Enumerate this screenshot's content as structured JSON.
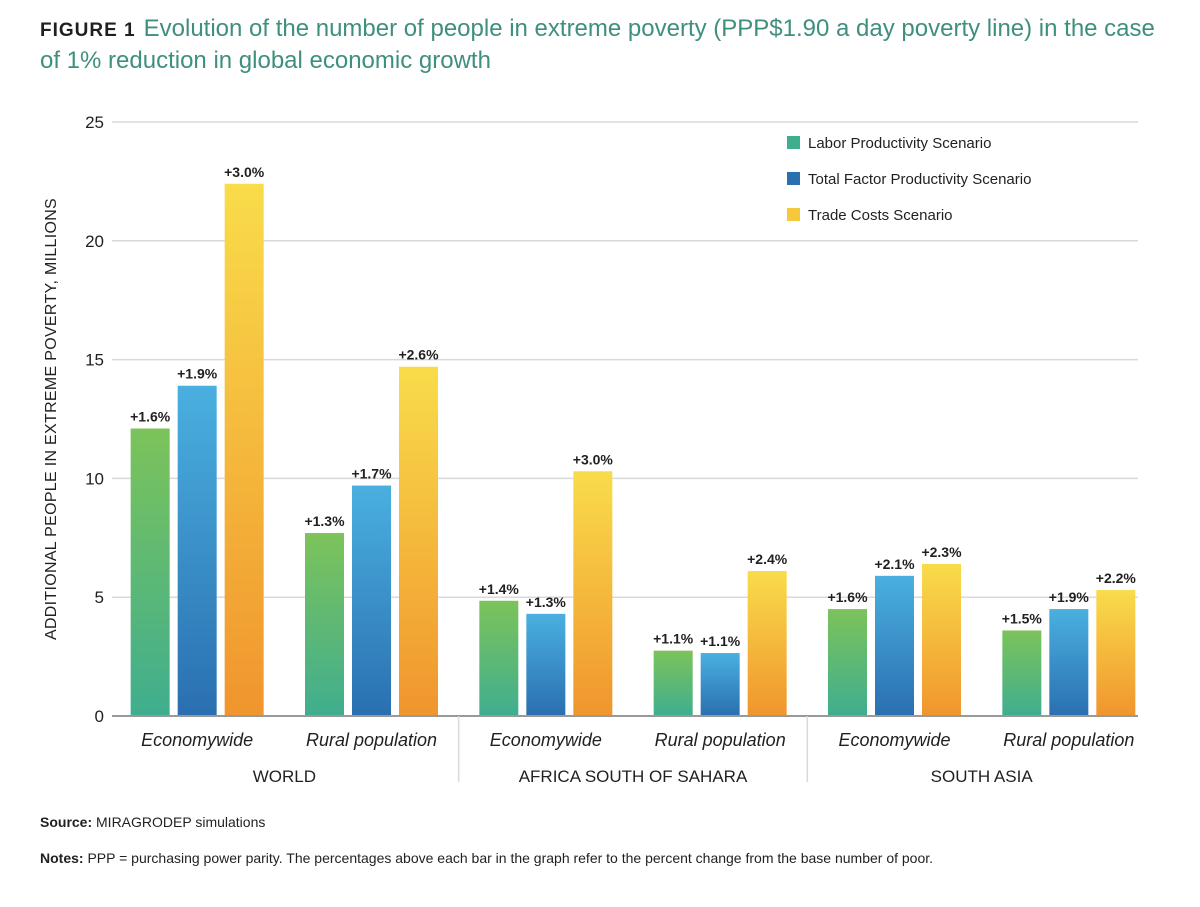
{
  "figure_label": "FIGURE 1",
  "title": "Evolution of the number of people in extreme poverty (PPP$1.90 a day poverty line) in the case of 1% reduction in global economic growth",
  "source_label": "Source:",
  "source_text": "MIRAGRODEP simulations",
  "notes_label": "Notes:",
  "notes_text": "PPP = purchasing power parity. The percentages above each bar in the graph refer to the percent change from the base number of poor.",
  "colors": {
    "labor": [
      "#7cc35a",
      "#3fae8f"
    ],
    "tfp": [
      "#4ab0e0",
      "#2a6fb0"
    ],
    "trade": [
      "#f9dc4a",
      "#f0952e"
    ],
    "grid": "#d9d9d9",
    "axis": "#999999",
    "title": "#3f8f7f"
  },
  "chart_data": {
    "type": "bar",
    "ylabel": "ADDITIONAL PEOPLE IN EXTREME POVERTY, MILLIONS",
    "ylim": [
      0,
      25
    ],
    "yticks": [
      0,
      5,
      10,
      15,
      20,
      25
    ],
    "grid": true,
    "legend_position": "top-right",
    "groups": [
      "WORLD",
      "AFRICA SOUTH OF SAHARA",
      "SOUTH ASIA"
    ],
    "categories": [
      "Economywide",
      "Rural population",
      "Economywide",
      "Rural population",
      "Economywide",
      "Rural population"
    ],
    "category_group": [
      0,
      0,
      1,
      1,
      2,
      2
    ],
    "series": [
      {
        "name": "Labor Productivity Scenario",
        "color_key": "labor",
        "values": [
          12.1,
          7.7,
          4.85,
          2.75,
          4.5,
          3.6
        ],
        "labels": [
          "+1.6%",
          "+1.3%",
          "+1.4%",
          "+1.1%",
          "+1.6%",
          "+1.5%"
        ]
      },
      {
        "name": "Total Factor Productivity Scenario",
        "color_key": "tfp",
        "values": [
          13.9,
          9.7,
          4.3,
          2.65,
          5.9,
          4.5
        ],
        "labels": [
          "+1.9%",
          "+1.7%",
          "+1.3%",
          "+1.1%",
          "+2.1%",
          "+1.9%"
        ]
      },
      {
        "name": "Trade Costs Scenario",
        "color_key": "trade",
        "values": [
          22.4,
          14.7,
          10.3,
          6.1,
          6.4,
          5.3
        ],
        "labels": [
          "+3.0%",
          "+2.6%",
          "+3.0%",
          "+2.4%",
          "+2.3%",
          "+2.2%"
        ]
      }
    ]
  }
}
